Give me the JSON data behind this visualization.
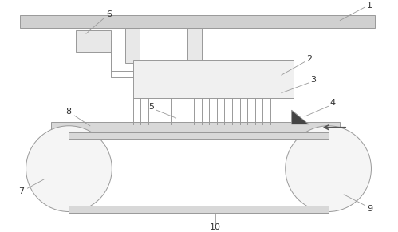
{
  "bg_color": "#ffffff",
  "line_color": "#999999",
  "fig_width": 4.99,
  "fig_height": 2.91,
  "dpi": 100,
  "label_fontsize": 8
}
